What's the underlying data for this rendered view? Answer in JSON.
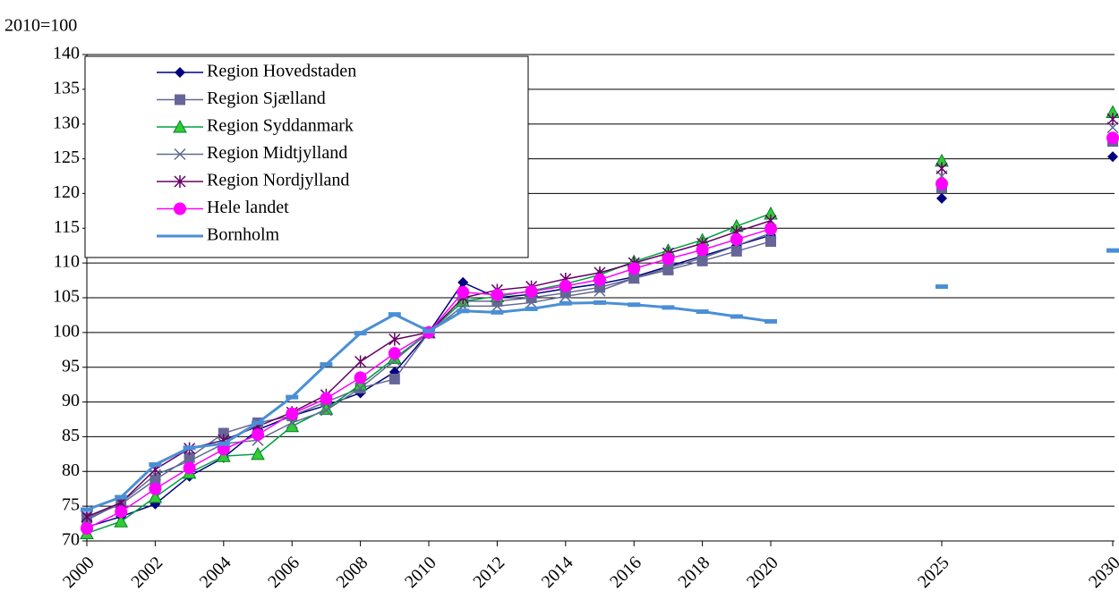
{
  "chart_data": {
    "type": "line",
    "ylabel": "2010=100",
    "x": [
      2000,
      2001,
      2002,
      2003,
      2004,
      2005,
      2006,
      2007,
      2008,
      2009,
      2010,
      2011,
      2012,
      2013,
      2014,
      2015,
      2016,
      2017,
      2018,
      2019,
      2020,
      2021,
      2022,
      2023,
      2024,
      2025,
      2026,
      2027,
      2028,
      2029,
      2030
    ],
    "xlim": [
      2000,
      2030
    ],
    "xticks": [
      2000,
      2002,
      2004,
      2006,
      2008,
      2010,
      2012,
      2014,
      2016,
      2018,
      2020,
      2025,
      2030
    ],
    "ylim": [
      70,
      140
    ],
    "yticks": [
      70,
      75,
      80,
      85,
      90,
      95,
      100,
      105,
      110,
      115,
      120,
      125,
      130,
      135,
      140
    ],
    "grid": true,
    "legend": "upper left",
    "series": [
      {
        "name": "Region Hovedstaden",
        "color": "#000080",
        "marker": "diamond",
        "values": [
          72,
          73.5,
          75.3,
          79.3,
          82,
          86,
          88,
          89.5,
          91.3,
          94.3,
          100,
          107.2,
          105,
          105.5,
          106.3,
          107,
          108,
          109.5,
          111,
          112.5,
          114,
          null,
          null,
          null,
          null,
          119.3,
          null,
          null,
          null,
          null,
          125.3
        ]
      },
      {
        "name": "Region Sjælland",
        "color": "#666699",
        "marker": "square",
        "values": [
          73.3,
          75.3,
          78.8,
          82,
          85.5,
          87,
          88,
          90,
          92,
          93.3,
          100,
          104.5,
          104.5,
          105,
          105.7,
          106.5,
          107.8,
          109,
          110.3,
          111.7,
          113.1,
          null,
          null,
          null,
          null,
          120.8,
          null,
          null,
          null,
          null,
          127.5
        ]
      },
      {
        "name": "Region Syddanmark",
        "color": "#00a040",
        "marker": "triangle",
        "values": [
          71.1,
          72.8,
          76.3,
          79.8,
          82.2,
          82.5,
          86.5,
          89,
          92.5,
          96.3,
          100,
          104.5,
          105.2,
          106,
          107,
          108.3,
          110.2,
          111.8,
          113.3,
          115.3,
          117.1,
          null,
          null,
          null,
          null,
          124.7,
          null,
          null,
          null,
          null,
          131.7
        ]
      },
      {
        "name": "Region Midtjylland",
        "color": "#5f6a8f",
        "marker": "x",
        "values": [
          73,
          75.5,
          79.5,
          81.5,
          84,
          84.5,
          87,
          88.8,
          92,
          96,
          100,
          103.8,
          103.8,
          104.3,
          105.2,
          106,
          107.8,
          109.3,
          110.7,
          112.5,
          114.3,
          null,
          null,
          null,
          null,
          122.5,
          null,
          null,
          null,
          null,
          129.5
        ]
      },
      {
        "name": "Region Nordjylland",
        "color": "#660066",
        "marker": "star",
        "values": [
          73.5,
          75.5,
          80.3,
          83.3,
          84.5,
          86.5,
          88.5,
          91,
          95.8,
          99,
          100,
          105,
          106.1,
          106.6,
          107.7,
          108.6,
          110,
          111.4,
          112.8,
          114.5,
          116.1,
          null,
          null,
          null,
          null,
          123.6,
          null,
          null,
          null,
          null,
          130.7
        ]
      },
      {
        "name": "Hele landet",
        "color": "#ff00ff",
        "marker": "circle",
        "values": [
          71.8,
          74.2,
          77.5,
          80.5,
          83.2,
          85.3,
          88.3,
          90.5,
          93.5,
          97,
          100,
          105.8,
          105.4,
          105.9,
          106.7,
          107.6,
          109.2,
          110.6,
          111.9,
          113.4,
          114.9,
          null,
          null,
          null,
          null,
          121.4,
          null,
          null,
          null,
          null,
          128
        ]
      },
      {
        "name": "Bornholm",
        "color": "#4a8fd6",
        "marker": "dash",
        "values": [
          74.5,
          76.3,
          81,
          83.4,
          84,
          87,
          90.7,
          95.4,
          99.9,
          102.6,
          100.2,
          103.1,
          102.9,
          103.4,
          104.2,
          104.3,
          104,
          103.6,
          103,
          102.3,
          101.6,
          null,
          null,
          null,
          null,
          106.6,
          null,
          null,
          null,
          null,
          111.8
        ]
      }
    ]
  }
}
